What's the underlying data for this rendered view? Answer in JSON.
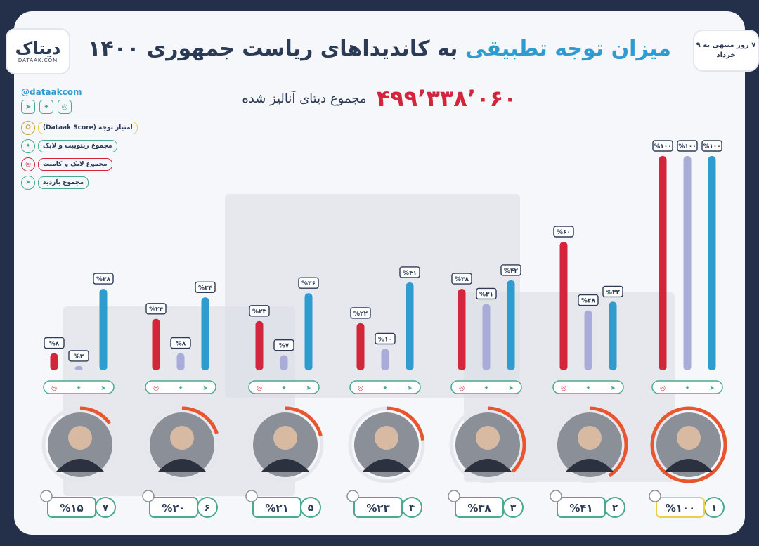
{
  "brand": {
    "name": "دیتاک",
    "site": "DATAAK.COM"
  },
  "date_note": "۷ روز منتهی به ۹ خرداد",
  "title": {
    "accent": "میزان توجه تطبیقی",
    "rest": " به کاندیداهای ریاست جمهوری ۱۴۰۰"
  },
  "total": {
    "value": "۴۹۹٬۳۳۸٬۰۶۰",
    "label": "مجموع دیتای آنالیز شده"
  },
  "legend": {
    "handle": "@dataakcom",
    "items": [
      {
        "key": "score",
        "label": "امتیاز توجه (Dataak Score)"
      },
      {
        "key": "twitter",
        "label": "مجموع ریتوییت و لایک",
        "color": "#a9acd9"
      },
      {
        "key": "instagram",
        "label": "مجموع لایک و کامنت",
        "color": "#d3263b"
      },
      {
        "key": "telegram",
        "label": "مجموع بازدید",
        "color": "#2f9ccf"
      }
    ]
  },
  "colors": {
    "instagram": "#d3263b",
    "twitter": "#a9acd9",
    "telegram": "#2f9ccf",
    "accent": "#e8552e",
    "dark": "#2c3b55",
    "green": "#4aa98e",
    "gold": "#e9d04a"
  },
  "chart_data": {
    "type": "bar",
    "ylim": [
      0,
      100
    ],
    "categories": [
      "1",
      "2",
      "3",
      "4",
      "5",
      "6",
      "7"
    ],
    "rank_labels": [
      "۱",
      "۲",
      "۳",
      "۴",
      "۵",
      "۶",
      "۷"
    ],
    "series": [
      {
        "key": "instagram",
        "values": [
          100,
          60,
          38,
          22,
          23,
          24,
          8
        ],
        "labels": [
          "%۱۰۰",
          "%۶۰",
          "%۳۸",
          "%۲۲",
          "%۲۳",
          "%۲۴",
          "%۸"
        ]
      },
      {
        "key": "twitter",
        "values": [
          100,
          28,
          31,
          10,
          7,
          8,
          2
        ],
        "labels": [
          "%۱۰۰",
          "%۲۸",
          "%۳۱",
          "%۱۰",
          "%۷",
          "%۸",
          "%۲"
        ]
      },
      {
        "key": "telegram",
        "values": [
          100,
          32,
          42,
          41,
          36,
          34,
          38
        ],
        "labels": [
          "%۱۰۰",
          "%۳۲",
          "%۴۲",
          "%۴۱",
          "%۳۶",
          "%۳۴",
          "%۳۸"
        ]
      }
    ],
    "score": {
      "values": [
        100,
        41,
        38,
        23,
        21,
        20,
        15
      ],
      "labels": [
        "%۱۰۰",
        "%۴۱",
        "%۳۸",
        "%۲۳",
        "%۲۱",
        "%۲۰",
        "%۱۵"
      ]
    }
  }
}
